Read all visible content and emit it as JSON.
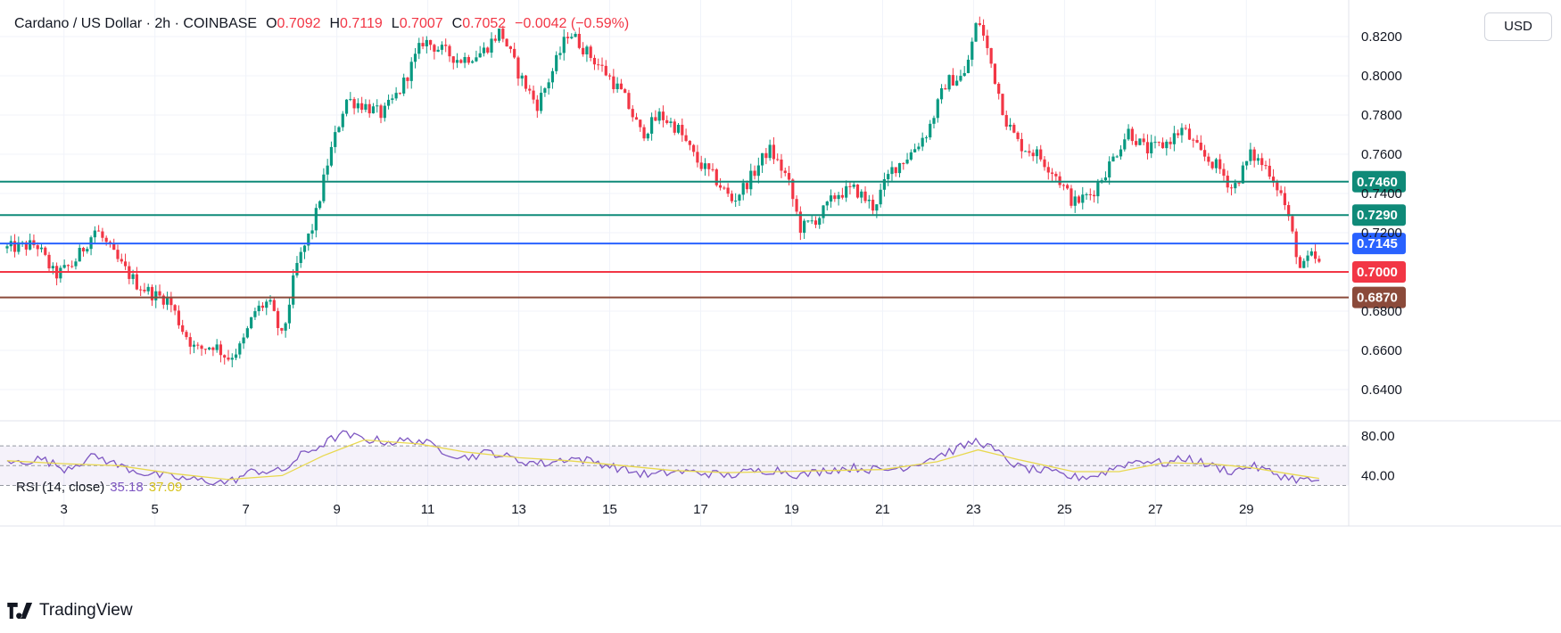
{
  "header": {
    "symbol": "Cardano / US Dollar · 2h · COINBASE",
    "open_label": "O",
    "open": "0.7092",
    "high_label": "H",
    "high": "0.7119",
    "low_label": "L",
    "low": "0.7007",
    "close_label": "C",
    "close": "0.7052",
    "change": "−0.0042 (−0.59%)"
  },
  "currency_button": "USD",
  "rsi": {
    "label": "RSI (14, close)",
    "value": "35.18",
    "ma": "37.09"
  },
  "brand": "TradingView",
  "colors": {
    "up": "#089981",
    "down": "#f23645",
    "rsi_line": "#7e57c2",
    "rsi_ma": "#e8d84f",
    "level_green": "#0f8a78",
    "level_blue": "#2962ff",
    "level_red": "#f23645",
    "level_brown": "#8b4a3a"
  },
  "chart_data": {
    "type": "candlestick",
    "title": "Cardano / US Dollar · 2h · COINBASE",
    "ylim": [
      0.625,
      0.835
    ],
    "y_ticks": [
      "0.6400",
      "0.6600",
      "0.6800",
      "0.7200",
      "0.7400",
      "0.7600",
      "0.7800",
      "0.8000",
      "0.8200"
    ],
    "y_tick_values": [
      0.64,
      0.66,
      0.68,
      0.72,
      0.74,
      0.76,
      0.78,
      0.8,
      0.82
    ],
    "x_ticks": [
      "3",
      "5",
      "7",
      "9",
      "11",
      "13",
      "15",
      "17",
      "19",
      "21",
      "23",
      "25",
      "27",
      "29"
    ],
    "x_tick_days": [
      3,
      5,
      7,
      9,
      11,
      13,
      15,
      17,
      19,
      21,
      23,
      25,
      27,
      29
    ],
    "x_range_days": [
      1.75,
      31.25
    ],
    "levels": [
      {
        "value": 0.746,
        "label": "0.7460",
        "color": "#0f8a78"
      },
      {
        "value": 0.729,
        "label": "0.7290",
        "color": "#0f8a78"
      },
      {
        "value": 0.7145,
        "label": "0.7145",
        "color": "#2962ff"
      },
      {
        "value": 0.7,
        "label": "0.7000",
        "color": "#f23645"
      },
      {
        "value": 0.687,
        "label": "0.6870",
        "color": "#8b4a3a"
      }
    ],
    "price_path": [
      [
        1.75,
        0.712
      ],
      [
        2.4,
        0.714
      ],
      [
        2.8,
        0.698
      ],
      [
        3.2,
        0.704
      ],
      [
        3.7,
        0.722
      ],
      [
        4.2,
        0.705
      ],
      [
        4.6,
        0.694
      ],
      [
        5.0,
        0.688
      ],
      [
        5.3,
        0.686
      ],
      [
        5.6,
        0.671
      ],
      [
        5.9,
        0.66
      ],
      [
        6.3,
        0.663
      ],
      [
        6.6,
        0.656
      ],
      [
        6.9,
        0.662
      ],
      [
        7.2,
        0.68
      ],
      [
        7.5,
        0.685
      ],
      [
        7.8,
        0.666
      ],
      [
        8.1,
        0.702
      ],
      [
        8.5,
        0.725
      ],
      [
        8.8,
        0.756
      ],
      [
        9.2,
        0.788
      ],
      [
        9.6,
        0.785
      ],
      [
        10.0,
        0.78
      ],
      [
        10.4,
        0.793
      ],
      [
        10.9,
        0.818
      ],
      [
        11.3,
        0.813
      ],
      [
        11.7,
        0.808
      ],
      [
        12.2,
        0.812
      ],
      [
        12.6,
        0.823
      ],
      [
        13.0,
        0.801
      ],
      [
        13.4,
        0.785
      ],
      [
        13.7,
        0.8
      ],
      [
        14.1,
        0.823
      ],
      [
        14.5,
        0.812
      ],
      [
        14.9,
        0.802
      ],
      [
        15.3,
        0.79
      ],
      [
        15.7,
        0.77
      ],
      [
        16.1,
        0.78
      ],
      [
        16.5,
        0.773
      ],
      [
        16.9,
        0.757
      ],
      [
        17.3,
        0.748
      ],
      [
        17.7,
        0.736
      ],
      [
        18.1,
        0.748
      ],
      [
        18.5,
        0.763
      ],
      [
        18.9,
        0.748
      ],
      [
        19.2,
        0.722
      ],
      [
        19.6,
        0.728
      ],
      [
        20.0,
        0.74
      ],
      [
        20.4,
        0.742
      ],
      [
        20.8,
        0.733
      ],
      [
        21.2,
        0.752
      ],
      [
        21.6,
        0.76
      ],
      [
        22.0,
        0.772
      ],
      [
        22.4,
        0.797
      ],
      [
        22.8,
        0.8
      ],
      [
        23.1,
        0.83
      ],
      [
        23.4,
        0.805
      ],
      [
        23.7,
        0.778
      ],
      [
        24.0,
        0.765
      ],
      [
        24.4,
        0.76
      ],
      [
        24.8,
        0.75
      ],
      [
        25.2,
        0.735
      ],
      [
        25.6,
        0.74
      ],
      [
        26.0,
        0.755
      ],
      [
        26.4,
        0.772
      ],
      [
        26.8,
        0.762
      ],
      [
        27.2,
        0.765
      ],
      [
        27.6,
        0.773
      ],
      [
        28.0,
        0.76
      ],
      [
        28.4,
        0.753
      ],
      [
        28.7,
        0.742
      ],
      [
        29.1,
        0.76
      ],
      [
        29.5,
        0.752
      ],
      [
        29.8,
        0.738
      ],
      [
        30.0,
        0.72
      ],
      [
        30.2,
        0.7
      ],
      [
        30.4,
        0.708
      ],
      [
        30.6,
        0.7052
      ]
    ],
    "rsi": {
      "label": "RSI (14, close)",
      "y_ticks": [
        "40.00",
        "80.00"
      ],
      "y_tick_values": [
        40,
        80
      ],
      "ylim": [
        25,
        90
      ],
      "bands": [
        30,
        50,
        70
      ],
      "path": [
        [
          1.75,
          52
        ],
        [
          2.5,
          57
        ],
        [
          3.0,
          47
        ],
        [
          3.7,
          60
        ],
        [
          4.2,
          50
        ],
        [
          4.8,
          42
        ],
        [
          5.4,
          38
        ],
        [
          6.0,
          35
        ],
        [
          6.6,
          33
        ],
        [
          7.2,
          45
        ],
        [
          7.8,
          44
        ],
        [
          8.2,
          60
        ],
        [
          8.7,
          72
        ],
        [
          9.1,
          82
        ],
        [
          9.6,
          77
        ],
        [
          10.2,
          74
        ],
        [
          10.8,
          76
        ],
        [
          11.3,
          66
        ],
        [
          11.8,
          58
        ],
        [
          12.4,
          64
        ],
        [
          13.0,
          55
        ],
        [
          13.6,
          52
        ],
        [
          14.1,
          58
        ],
        [
          14.7,
          54
        ],
        [
          15.3,
          46
        ],
        [
          15.9,
          40
        ],
        [
          16.4,
          44
        ],
        [
          17.0,
          43
        ],
        [
          17.6,
          40
        ],
        [
          18.1,
          44
        ],
        [
          18.7,
          46
        ],
        [
          19.2,
          40
        ],
        [
          19.8,
          46
        ],
        [
          20.4,
          48
        ],
        [
          21.0,
          45
        ],
        [
          21.6,
          50
        ],
        [
          22.2,
          60
        ],
        [
          22.7,
          68
        ],
        [
          23.1,
          76
        ],
        [
          23.5,
          64
        ],
        [
          24.0,
          48
        ],
        [
          24.6,
          44
        ],
        [
          25.2,
          38
        ],
        [
          25.7,
          40
        ],
        [
          26.2,
          50
        ],
        [
          26.7,
          56
        ],
        [
          27.2,
          52
        ],
        [
          27.7,
          58
        ],
        [
          28.2,
          50
        ],
        [
          28.7,
          44
        ],
        [
          29.1,
          50
        ],
        [
          29.5,
          44
        ],
        [
          29.9,
          38
        ],
        [
          30.3,
          35
        ],
        [
          30.6,
          35.18
        ]
      ],
      "ma_path": [
        [
          1.75,
          55
        ],
        [
          3.0,
          52
        ],
        [
          4.2,
          50
        ],
        [
          5.4,
          42
        ],
        [
          6.6,
          36
        ],
        [
          7.8,
          40
        ],
        [
          8.7,
          60
        ],
        [
          9.6,
          76
        ],
        [
          10.8,
          72
        ],
        [
          11.8,
          64
        ],
        [
          13.0,
          58
        ],
        [
          14.1,
          55
        ],
        [
          15.3,
          50
        ],
        [
          16.4,
          45
        ],
        [
          17.6,
          43
        ],
        [
          18.7,
          44
        ],
        [
          19.8,
          45
        ],
        [
          21.0,
          46
        ],
        [
          22.2,
          54
        ],
        [
          23.1,
          66
        ],
        [
          24.0,
          56
        ],
        [
          25.2,
          44
        ],
        [
          26.2,
          44
        ],
        [
          27.2,
          53
        ],
        [
          28.2,
          52
        ],
        [
          29.1,
          48
        ],
        [
          29.9,
          42
        ],
        [
          30.6,
          37.09
        ]
      ]
    }
  }
}
